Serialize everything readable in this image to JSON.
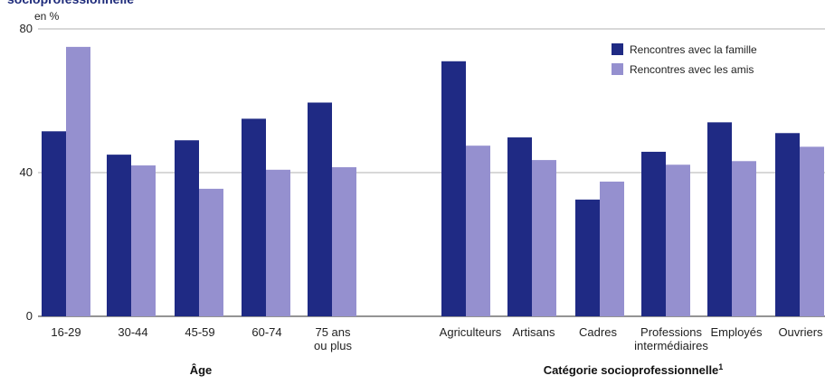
{
  "chart_data": {
    "type": "bar",
    "title": "socioprofessionnelle",
    "ylabel": "en %",
    "ylim": [
      0,
      80
    ],
    "yticks": [
      0,
      40,
      80
    ],
    "grid": true,
    "legend_position": "top-right",
    "colors": {
      "famille": "#1f2a84",
      "amis": "#9590cf",
      "grid": "#999999"
    },
    "series": [
      {
        "name": "Rencontres avec la famille",
        "values": [
          51.5,
          45,
          49,
          55,
          59.5,
          71,
          49.8,
          32.5,
          45.8,
          54,
          51
        ]
      },
      {
        "name": "Rencontres avec les amis",
        "values": [
          75,
          42,
          35.5,
          40.8,
          41.5,
          47.5,
          43.5,
          37.5,
          42.2,
          43.2,
          47.2
        ]
      }
    ],
    "groups": [
      {
        "label": "Âge",
        "superscript": "",
        "categories": [
          [
            "16-29"
          ],
          [
            "30-44"
          ],
          [
            "45-59"
          ],
          [
            "60-74"
          ],
          [
            "75 ans",
            "ou plus"
          ]
        ]
      },
      {
        "label": "Catégorie socioprofessionnelle",
        "superscript": "1",
        "categories": [
          [
            "Agriculteurs"
          ],
          [
            "Artisans"
          ],
          [
            "Cadres"
          ],
          [
            "Professions",
            "intermédiaires"
          ],
          [
            "Employés"
          ],
          [
            "Ouvriers"
          ]
        ]
      }
    ]
  }
}
